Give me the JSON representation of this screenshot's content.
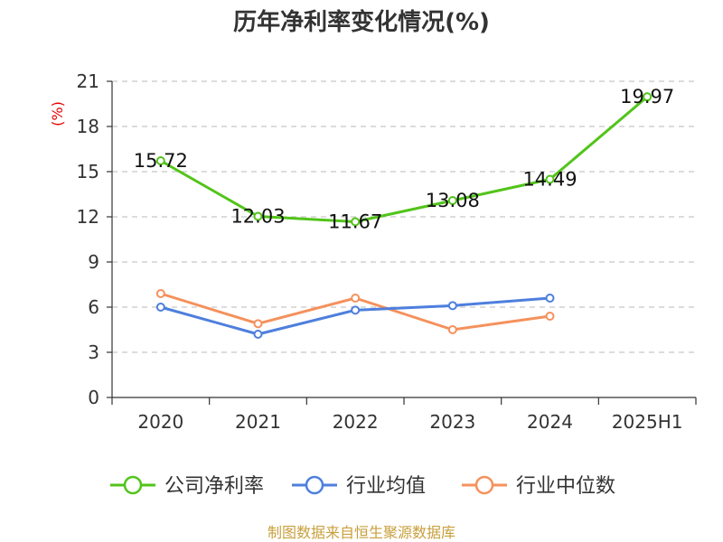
{
  "chart_data": {
    "type": "line",
    "title": "历年净利率变化情况(%)",
    "ylabel": "(%)",
    "categories": [
      "2020",
      "2021",
      "2022",
      "2023",
      "2024",
      "2025H1"
    ],
    "ylim": [
      0,
      21
    ],
    "yticks": [
      "0",
      "3",
      "6",
      "9",
      "12",
      "15",
      "18",
      "21"
    ],
    "grid": true,
    "legend_position": "bottom",
    "series": [
      {
        "name": "公司净利率",
        "color": "#52c41a",
        "values": [
          15.72,
          12.03,
          11.67,
          13.08,
          14.49,
          19.97
        ],
        "labels": [
          "15.72",
          "12.03",
          "11.67",
          "13.08",
          "14.49",
          "19.97"
        ]
      },
      {
        "name": "行业均值",
        "color": "#4e7fde",
        "values": [
          6.0,
          4.2,
          5.8,
          6.1,
          6.6,
          null
        ]
      },
      {
        "name": "行业中位数",
        "color": "#f5915c",
        "values": [
          6.9,
          4.9,
          6.6,
          4.5,
          5.4,
          null
        ]
      }
    ]
  },
  "source": "制图数据来自恒生聚源数据库"
}
